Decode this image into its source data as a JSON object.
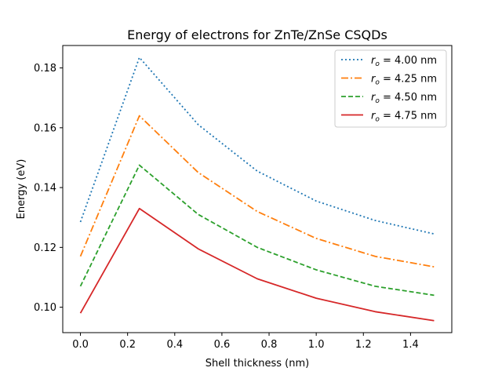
{
  "chart_data": {
    "type": "line",
    "title": "Energy of electrons for ZnTe/ZnSe CSQDs",
    "xlabel": "Shell thickness (nm)",
    "ylabel": "Energy (eV)",
    "xlim": [
      -0.075,
      1.575
    ],
    "ylim": [
      0.0915,
      0.1875
    ],
    "xticks": [
      0.0,
      0.2,
      0.4,
      0.6,
      0.8,
      1.0,
      1.2,
      1.4
    ],
    "xtick_labels": [
      "0.0",
      "0.2",
      "0.4",
      "0.6",
      "0.8",
      "1.0",
      "1.2",
      "1.4"
    ],
    "yticks": [
      0.1,
      0.12,
      0.14,
      0.16,
      0.18
    ],
    "ytick_labels": [
      "0.10",
      "0.12",
      "0.14",
      "0.16",
      "0.18"
    ],
    "grid": false,
    "legend_position": "top-right",
    "x": [
      0.0,
      0.25,
      0.5,
      0.75,
      1.0,
      1.25,
      1.5
    ],
    "series": [
      {
        "name": "r_o = 4.00 nm",
        "label_symbol": "r",
        "label_sub": "o",
        "label_rest": " = 4.00 nm",
        "color": "#1f77b4",
        "dash": "2,3",
        "values": [
          0.1285,
          0.1835,
          0.161,
          0.1455,
          0.1355,
          0.129,
          0.1245
        ]
      },
      {
        "name": "r_o = 4.25 nm",
        "label_symbol": "r",
        "label_sub": "o",
        "label_rest": " = 4.25 nm",
        "color": "#ff7f0e",
        "dash": "9,3,2,3",
        "values": [
          0.117,
          0.164,
          0.145,
          0.132,
          0.123,
          0.117,
          0.1135
        ]
      },
      {
        "name": "r_o = 4.50 nm",
        "label_symbol": "r",
        "label_sub": "o",
        "label_rest": " = 4.50 nm",
        "color": "#2ca02c",
        "dash": "6,3",
        "values": [
          0.107,
          0.1475,
          0.131,
          0.12,
          0.1125,
          0.107,
          0.104
        ]
      },
      {
        "name": "r_o = 4.75 nm",
        "label_symbol": "r",
        "label_sub": "o",
        "label_rest": " = 4.75 nm",
        "color": "#d62728",
        "dash": "",
        "values": [
          0.098,
          0.133,
          0.1195,
          0.1095,
          0.103,
          0.0985,
          0.0955
        ]
      }
    ]
  }
}
